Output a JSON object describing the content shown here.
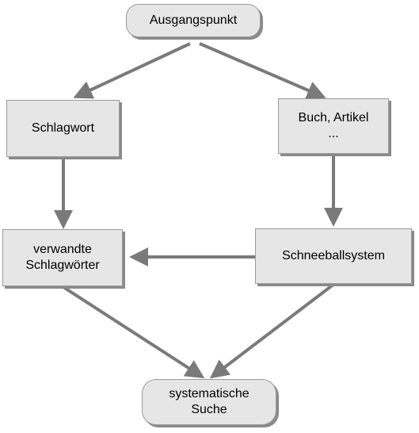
{
  "diagram": {
    "nodes": {
      "start": {
        "label": "Ausgangspunkt"
      },
      "keyword": {
        "label": "Schlagwort"
      },
      "book": {
        "label_line1": "Buch, Artikel",
        "label_line2": "..."
      },
      "related": {
        "label_line1": "verwandte",
        "label_line2": "Schlagwörter"
      },
      "snowball": {
        "label": "Schneeballsystem"
      },
      "end": {
        "label_line1": "systematische",
        "label_line2": "Suche"
      }
    },
    "edges": [
      {
        "from": "Ausgangspunkt",
        "to": "Schlagwort"
      },
      {
        "from": "Ausgangspunkt",
        "to": "Buch, Artikel ..."
      },
      {
        "from": "Schlagwort",
        "to": "verwandte Schlagwörter"
      },
      {
        "from": "Buch, Artikel ...",
        "to": "Schneeballsystem"
      },
      {
        "from": "Schneeballsystem",
        "to": "verwandte Schlagwörter"
      },
      {
        "from": "verwandte Schlagwörter",
        "to": "systematische Suche"
      },
      {
        "from": "Schneeballsystem",
        "to": "systematische Suche"
      }
    ],
    "colors": {
      "node_fill": "#e6e6e6",
      "node_border": "#9a9a9a",
      "shadow": "#8a8a8a",
      "arrow": "#7a7a7a"
    }
  }
}
